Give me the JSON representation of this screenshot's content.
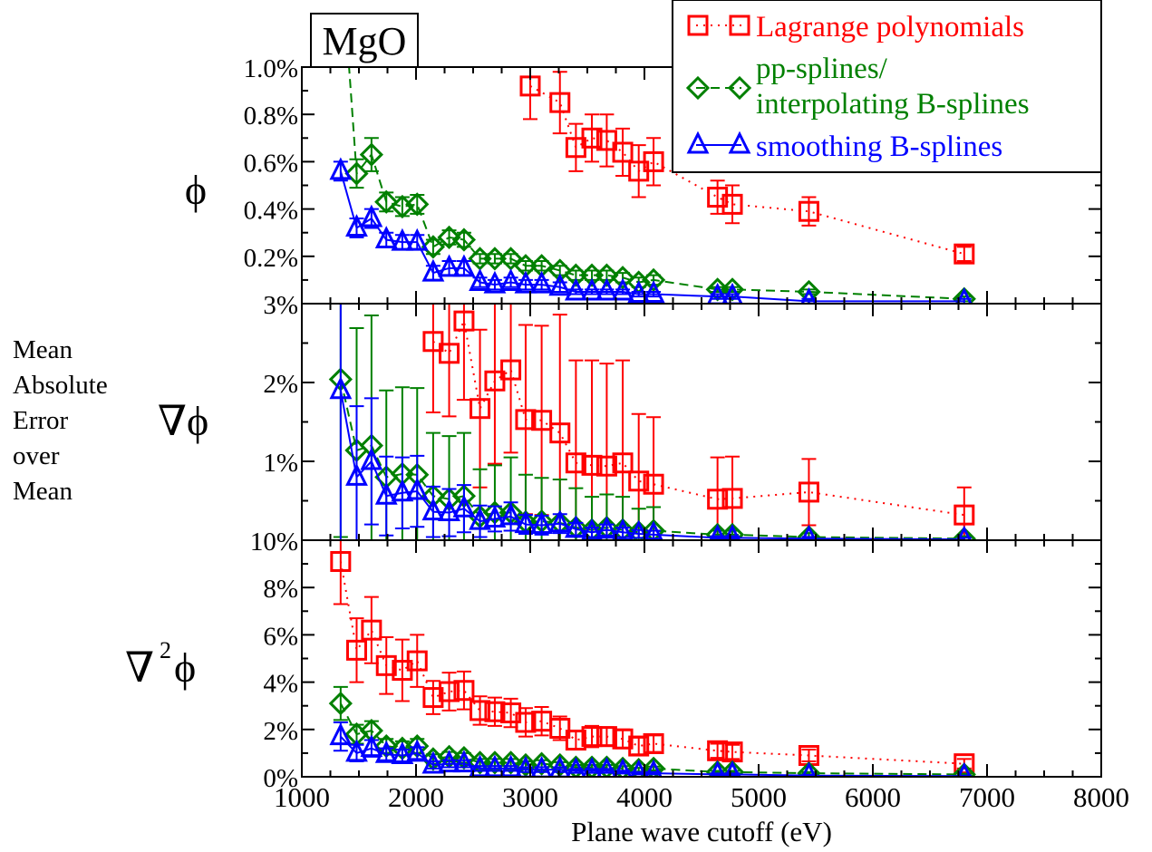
{
  "chart_data": {
    "type": "scatter",
    "material_label": "MgO",
    "xlabel": "Plane wave cutoff (eV)",
    "ylabel_lines": [
      "Mean",
      "Absolute",
      "Error",
      "over",
      "Mean"
    ],
    "xlim": [
      1000,
      8000
    ],
    "xticks": [
      1000,
      2000,
      3000,
      4000,
      5000,
      6000,
      7000,
      8000
    ],
    "legend_position": "top-right",
    "series": [
      {
        "key": "lagrange",
        "name": "Lagrange polynomials",
        "color": "#ff0000",
        "marker": "square",
        "line": "dotted"
      },
      {
        "key": "ppspline",
        "name_lines": [
          "pp-splines/",
          "interpolating B-splines"
        ],
        "color": "#008000",
        "marker": "diamond",
        "line": "dashed"
      },
      {
        "key": "smoothing",
        "name": "smoothing B-splines",
        "color": "#0000ff",
        "marker": "triangle",
        "line": "solid"
      }
    ],
    "panels": [
      {
        "label": "ϕ",
        "label_sup": "",
        "ylim": [
          0.0,
          1.0
        ],
        "ytick_values": [
          0.2,
          0.4,
          0.6,
          0.8,
          1.0
        ],
        "ytick_labels": [
          "0.2%",
          "0.4%",
          "0.6%",
          "0.8%",
          "1.0%"
        ],
        "data": {
          "lagrange": {
            "x": [
              3000,
              3260,
              3400,
              3540,
              3670,
              3810,
              3950,
              4080,
              4640,
              4770,
              5440,
              6800
            ],
            "y": [
              0.92,
              0.85,
              0.66,
              0.7,
              0.69,
              0.64,
              0.56,
              0.6,
              0.45,
              0.42,
              0.39,
              0.21
            ],
            "err": [
              0.14,
              0.13,
              0.1,
              0.1,
              0.11,
              0.1,
              0.11,
              0.1,
              0.07,
              0.08,
              0.06,
              0.03
            ]
          },
          "ppspline": {
            "x": [
              1340,
              1480,
              1610,
              1740,
              1880,
              2010,
              2150,
              2290,
              2420,
              2560,
              2690,
              2830,
              2960,
              3100,
              3260,
              3400,
              3540,
              3670,
              3810,
              3950,
              4080,
              4640,
              4770,
              5440,
              6800
            ],
            "y": [
              1.5,
              0.55,
              0.63,
              0.43,
              0.41,
              0.42,
              0.24,
              0.28,
              0.27,
              0.19,
              0.19,
              0.19,
              0.16,
              0.16,
              0.14,
              0.12,
              0.12,
              0.12,
              0.11,
              0.09,
              0.1,
              0.06,
              0.06,
              0.05,
              0.02
            ],
            "err": [
              0.05,
              0.06,
              0.07,
              0.04,
              0.04,
              0.04,
              0.03,
              0.03,
              0.03,
              0.02,
              0.02,
              0.02,
              0.02,
              0.02,
              0.02,
              0.02,
              0.02,
              0.02,
              0.02,
              0.02,
              0.02,
              0.01,
              0.01,
              0.01,
              0.01
            ]
          },
          "smoothing": {
            "x": [
              1340,
              1480,
              1610,
              1740,
              1880,
              2010,
              2150,
              2290,
              2420,
              2560,
              2690,
              2830,
              2960,
              3100,
              3260,
              3400,
              3540,
              3670,
              3810,
              3950,
              4080,
              4640,
              4770,
              5440,
              6800
            ],
            "y": [
              0.56,
              0.32,
              0.36,
              0.27,
              0.26,
              0.26,
              0.13,
              0.15,
              0.15,
              0.09,
              0.08,
              0.09,
              0.08,
              0.08,
              0.07,
              0.05,
              0.05,
              0.05,
              0.05,
              0.04,
              0.04,
              0.03,
              0.03,
              0.01,
              0.01
            ],
            "err": [
              0.04,
              0.04,
              0.04,
              0.03,
              0.03,
              0.03,
              0.03,
              0.03,
              0.03,
              0.02,
              0.02,
              0.02,
              0.02,
              0.02,
              0.02,
              0.01,
              0.01,
              0.01,
              0.01,
              0.01,
              0.01,
              0.01,
              0.01,
              0.01,
              0.01
            ]
          }
        }
      },
      {
        "label": "∇ϕ",
        "label_sup": "",
        "ylim": [
          0.0,
          3.0
        ],
        "ytick_values": [
          1,
          2,
          3
        ],
        "ytick_labels": [
          "1%",
          "2%",
          "3%"
        ],
        "data": {
          "lagrange": {
            "x": [
              2150,
              2290,
              2420,
              2560,
              2690,
              2830,
              2960,
              3100,
              3260,
              3400,
              3540,
              3670,
              3810,
              3950,
              4080,
              4640,
              4770,
              5440,
              6800
            ],
            "y": [
              2.52,
              2.37,
              2.78,
              1.67,
              2.02,
              2.16,
              1.53,
              1.52,
              1.36,
              0.98,
              0.95,
              0.94,
              0.98,
              0.75,
              0.71,
              0.52,
              0.53,
              0.61,
              0.32
            ],
            "err": [
              0.9,
              0.8,
              1.0,
              1.0,
              1.05,
              1.05,
              1.2,
              1.2,
              1.5,
              1.3,
              1.33,
              1.3,
              1.3,
              0.85,
              0.85,
              0.53,
              0.53,
              0.42,
              0.35
            ]
          },
          "ppspline": {
            "x": [
              1340,
              1480,
              1610,
              1740,
              1880,
              2010,
              2150,
              2290,
              2420,
              2560,
              2690,
              2830,
              2960,
              3100,
              3260,
              3400,
              3540,
              3670,
              3810,
              3950,
              4080,
              4640,
              4770,
              5440,
              6800
            ],
            "y": [
              2.04,
              1.14,
              1.2,
              0.8,
              0.84,
              0.83,
              0.56,
              0.52,
              0.56,
              0.3,
              0.35,
              0.35,
              0.23,
              0.24,
              0.22,
              0.16,
              0.13,
              0.16,
              0.13,
              0.1,
              0.12,
              0.07,
              0.07,
              0.04,
              0.02
            ],
            "err": [
              2.0,
              1.55,
              1.65,
              1.1,
              1.1,
              1.1,
              0.8,
              0.8,
              0.8,
              0.6,
              0.6,
              0.7,
              0.6,
              0.55,
              0.55,
              0.5,
              0.42,
              0.42,
              0.42,
              0.3,
              0.3,
              0.05,
              0.05,
              0.05,
              0.03
            ]
          },
          "smoothing": {
            "x": [
              1340,
              1480,
              1610,
              1740,
              1880,
              2010,
              2150,
              2290,
              2420,
              2560,
              2690,
              2830,
              2960,
              3100,
              3260,
              3400,
              3540,
              3670,
              3810,
              3950,
              4080,
              4640,
              4770,
              5440,
              6800
            ],
            "y": [
              1.9,
              0.8,
              1.0,
              0.56,
              0.6,
              0.62,
              0.36,
              0.35,
              0.4,
              0.24,
              0.27,
              0.3,
              0.2,
              0.19,
              0.21,
              0.14,
              0.1,
              0.13,
              0.1,
              0.08,
              0.07,
              0.03,
              0.03,
              0.02,
              0.01
            ],
            "err": [
              2.0,
              0.9,
              0.8,
              0.5,
              0.45,
              0.45,
              0.32,
              0.3,
              0.3,
              0.2,
              0.16,
              0.18,
              0.12,
              0.12,
              0.12,
              0.08,
              0.06,
              0.07,
              0.06,
              0.05,
              0.05,
              0.02,
              0.02,
              0.02,
              0.02
            ]
          }
        }
      },
      {
        "label": "∇",
        "label_sup": "2",
        "label_tail": "ϕ",
        "ylim": [
          0.0,
          10.0
        ],
        "ytick_values": [
          0,
          2,
          4,
          6,
          8,
          10
        ],
        "ytick_labels": [
          "0%",
          "2%",
          "4%",
          "6%",
          "8%",
          "10%"
        ],
        "data": {
          "lagrange": {
            "x": [
              1340,
              1480,
              1610,
              1740,
              1880,
              2010,
              2150,
              2290,
              2420,
              2560,
              2690,
              2830,
              2960,
              3100,
              3260,
              3400,
              3540,
              3670,
              3810,
              3950,
              4080,
              4640,
              4770,
              5440,
              6800
            ],
            "y": [
              9.1,
              5.35,
              6.2,
              4.7,
              4.5,
              4.9,
              3.35,
              3.6,
              3.65,
              2.8,
              2.75,
              2.7,
              2.3,
              2.35,
              2.05,
              1.55,
              1.7,
              1.7,
              1.6,
              1.3,
              1.4,
              1.1,
              1.05,
              0.9,
              0.55
            ],
            "err": [
              1.8,
              1.35,
              1.4,
              1.2,
              1.3,
              1.1,
              0.7,
              0.8,
              0.8,
              0.6,
              0.6,
              0.6,
              0.6,
              0.6,
              0.5,
              0.4,
              0.45,
              0.4,
              0.4,
              0.35,
              0.35,
              0.3,
              0.3,
              0.25,
              0.2
            ]
          },
          "ppspline": {
            "x": [
              1340,
              1480,
              1610,
              1740,
              1880,
              2010,
              2150,
              2290,
              2420,
              2560,
              2690,
              2830,
              2960,
              3100,
              3260,
              3400,
              3540,
              3670,
              3810,
              3950,
              4080,
              4640,
              4770,
              5440,
              6800
            ],
            "y": [
              3.1,
              1.8,
              1.95,
              1.3,
              1.2,
              1.3,
              0.75,
              0.85,
              0.8,
              0.6,
              0.6,
              0.6,
              0.5,
              0.55,
              0.5,
              0.4,
              0.4,
              0.4,
              0.35,
              0.3,
              0.35,
              0.2,
              0.2,
              0.15,
              0.1
            ],
            "err": [
              0.7,
              0.4,
              0.4,
              0.3,
              0.3,
              0.3,
              0.2,
              0.2,
              0.2,
              0.15,
              0.15,
              0.15,
              0.15,
              0.15,
              0.12,
              0.1,
              0.1,
              0.1,
              0.1,
              0.08,
              0.08,
              0.05,
              0.05,
              0.05,
              0.03
            ]
          },
          "smoothing": {
            "x": [
              1340,
              1480,
              1610,
              1740,
              1880,
              2010,
              2150,
              2290,
              2420,
              2560,
              2690,
              2830,
              2960,
              3100,
              3260,
              3400,
              3540,
              3670,
              3810,
              3950,
              4080,
              4640,
              4770,
              5440,
              6800
            ],
            "y": [
              1.7,
              1.0,
              1.2,
              0.95,
              0.9,
              1.0,
              0.5,
              0.55,
              0.55,
              0.35,
              0.35,
              0.35,
              0.3,
              0.3,
              0.3,
              0.25,
              0.25,
              0.25,
              0.2,
              0.15,
              0.15,
              0.1,
              0.1,
              0.05,
              0.03
            ],
            "err": [
              0.6,
              0.35,
              0.35,
              0.25,
              0.25,
              0.25,
              0.15,
              0.15,
              0.15,
              0.1,
              0.1,
              0.1,
              0.1,
              0.1,
              0.1,
              0.08,
              0.08,
              0.08,
              0.06,
              0.05,
              0.05,
              0.04,
              0.04,
              0.03,
              0.02
            ]
          }
        }
      }
    ]
  }
}
